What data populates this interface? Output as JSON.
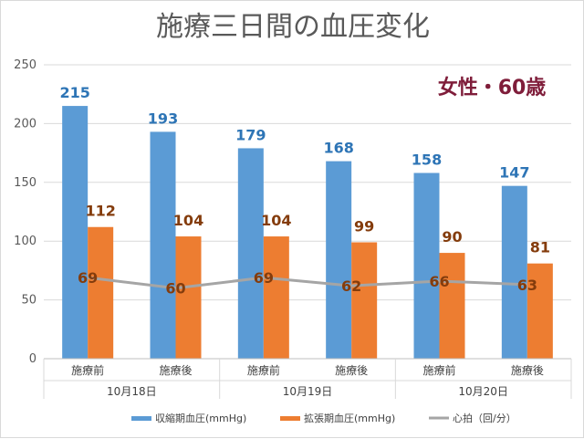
{
  "chart_data": {
    "type": "bar",
    "title": "施療三日間の血圧変化",
    "annotation": "女性・60歳",
    "categories": [
      "施療前",
      "施療後",
      "施療前",
      "施療後",
      "施療前",
      "施療後"
    ],
    "groups": [
      "10月18日",
      "10月19日",
      "10月20日"
    ],
    "y_ticks": [
      "0",
      "50",
      "100",
      "150",
      "200",
      "250"
    ],
    "ylim": [
      0,
      250
    ],
    "series": [
      {
        "name": "収縮期血圧(mmHg)",
        "type": "bar",
        "color": "#5b9bd5",
        "values": [
          215,
          193,
          179,
          168,
          158,
          147
        ]
      },
      {
        "name": "拡張期血圧(mmHg)",
        "type": "bar",
        "color": "#ed7d31",
        "values": [
          112,
          104,
          104,
          99,
          90,
          81
        ]
      },
      {
        "name": "心拍（回/分）",
        "type": "line",
        "color": "#a5a5a5",
        "values": [
          69,
          60,
          69,
          62,
          66,
          63
        ]
      }
    ],
    "grid": true,
    "legend_position": "bottom"
  }
}
